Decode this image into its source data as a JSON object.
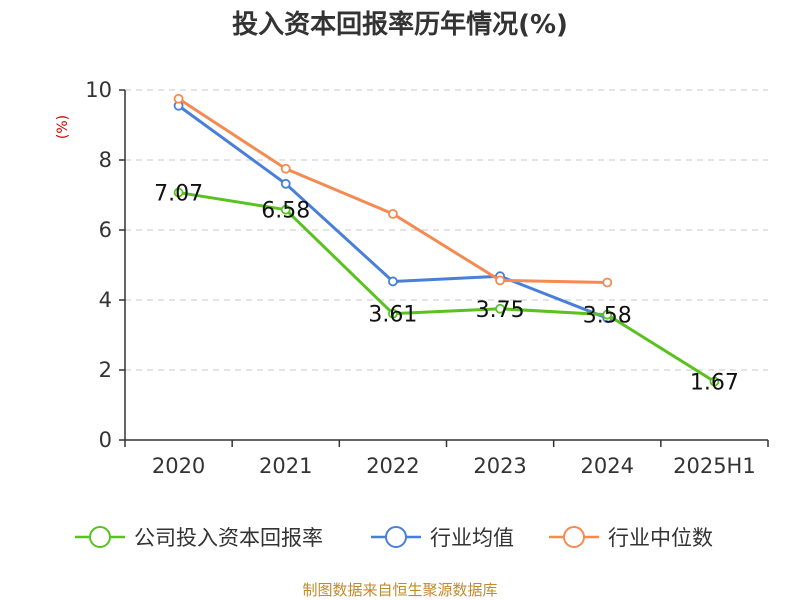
{
  "chart_data": {
    "type": "line",
    "title": "投入资本回报率历年情况(%)",
    "ylabel": "(%)",
    "xlabel": "",
    "categories": [
      "2020",
      "2021",
      "2022",
      "2023",
      "2024",
      "2025H1"
    ],
    "ylim": [
      0,
      10
    ],
    "yticks": [
      0,
      2,
      4,
      6,
      8,
      10
    ],
    "grid": true,
    "legend_position": "bottom",
    "series": [
      {
        "name": "公司投入资本回报率",
        "color": "#5ac21f",
        "values": [
          7.07,
          6.58,
          3.61,
          3.75,
          3.58,
          1.67
        ],
        "labels": [
          "7.07",
          "6.58",
          "3.61",
          "3.75",
          "3.58",
          "1.67"
        ]
      },
      {
        "name": "行业均值",
        "color": "#4a7fd9",
        "values": [
          9.55,
          7.32,
          4.53,
          4.68,
          3.48,
          null
        ]
      },
      {
        "name": "行业中位数",
        "color": "#f58a52",
        "values": [
          9.75,
          7.75,
          6.46,
          4.56,
          4.5,
          null
        ]
      }
    ]
  },
  "source": "制图数据来自恒生聚源数据库"
}
